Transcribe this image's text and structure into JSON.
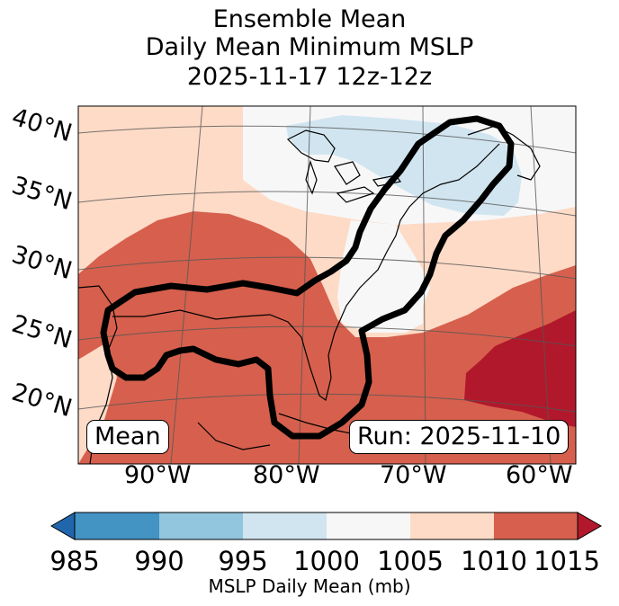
{
  "title": {
    "line1": "Ensemble Mean",
    "line2": "Daily Mean Minimum MSLP",
    "line3": "2025-11-17 12z-12z"
  },
  "map": {
    "lat_labels": [
      "40°N",
      "35°N",
      "30°N",
      "25°N",
      "20°N"
    ],
    "lon_labels": [
      "90°W",
      "80°W",
      "70°W",
      "60°W"
    ],
    "mean_box": "Mean",
    "run_box": "Run: 2025-11-10"
  },
  "colorbar": {
    "ticks": [
      "985",
      "990",
      "995",
      "1000",
      "1005",
      "1010",
      "1015"
    ],
    "label": "MSLP Daily Mean (mb)",
    "colors": {
      "below": "#2166ac",
      "c985_990": "#4393c3",
      "c990_995": "#92c5de",
      "c995_1000": "#d1e5f0",
      "c1000_1005": "#f7f7f7",
      "c1005_1010": "#fddbc7",
      "c1010_1015": "#d6604d",
      "above": "#b2182b"
    }
  }
}
